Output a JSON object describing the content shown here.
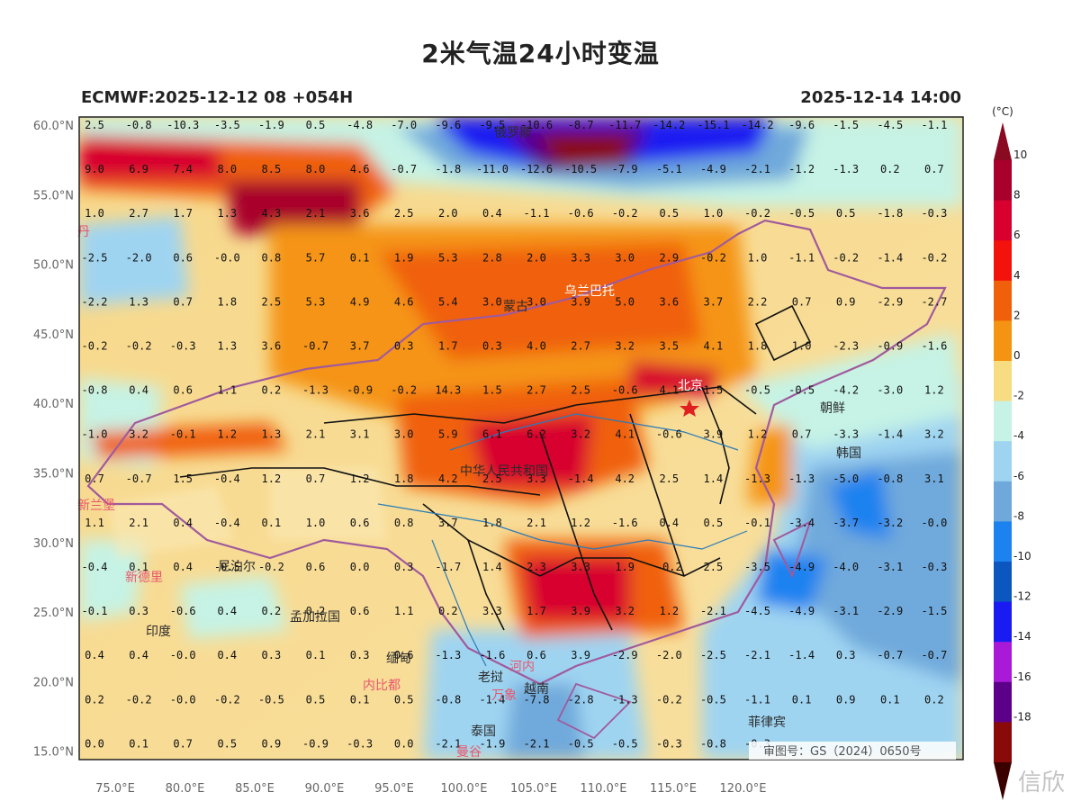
{
  "header": {
    "title": "2米气温24小时变温",
    "model_run": "ECMWF:2025-12-12 08 +054H",
    "valid_time": "2025-12-14 14:00"
  },
  "map": {
    "lat_labels": [
      "60.0°N",
      "55.0°N",
      "50.0°N",
      "45.0°N",
      "40.0°N",
      "35.0°N",
      "30.0°N",
      "25.0°N",
      "20.0°N",
      "15.0°N"
    ],
    "lon_labels": [
      "75.0°E",
      "80.0°E",
      "85.0°E",
      "90.0°E",
      "95.0°E",
      "100.0°E",
      "105.0°E",
      "110.0°E",
      "115.0°E",
      "120.0°E"
    ],
    "grid_values": [
      [
        "2.5",
        "-0.8",
        "-10.3",
        "-3.5",
        "-1.9",
        "0.5",
        "-4.8",
        "-7.0",
        "-9.6",
        "-9.5",
        "-10.6",
        "-8.7",
        "-11.7",
        "-14.2",
        "-15.1",
        "-14.2",
        "-9.6",
        "-1.5",
        "-4.5",
        "-1.1"
      ],
      [
        "9.0",
        "6.9",
        "7.4",
        "8.0",
        "8.5",
        "8.0",
        "4.6",
        "-0.7",
        "-1.8",
        "-11.0",
        "-12.6",
        "-10.5",
        "-7.9",
        "-5.1",
        "-4.9",
        "-2.1",
        "-1.2",
        "-1.3",
        "0.2",
        "0.7"
      ],
      [
        "1.0",
        "2.7",
        "1.7",
        "1.3",
        "4.3",
        "2.1",
        "3.6",
        "2.5",
        "2.0",
        "0.4",
        "-1.1",
        "-0.6",
        "-0.2",
        "0.5",
        "1.0",
        "-0.2",
        "-0.5",
        "0.5",
        "-1.8",
        "-0.3"
      ],
      [
        "-2.5",
        "-2.0",
        "0.6",
        "-0.0",
        "0.8",
        "5.7",
        "0.1",
        "1.9",
        "5.3",
        "2.8",
        "2.0",
        "3.3",
        "3.0",
        "2.9",
        "-0.2",
        "1.0",
        "-1.1",
        "-0.2",
        "-1.4",
        "-0.2"
      ],
      [
        "-2.2",
        "1.3",
        "0.7",
        "1.8",
        "2.5",
        "5.3",
        "4.9",
        "4.6",
        "5.4",
        "3.0",
        "3.0",
        "3.9",
        "5.0",
        "3.6",
        "3.7",
        "2.2",
        "0.7",
        "0.9",
        "-2.9",
        "-2.7"
      ],
      [
        "-0.2",
        "-0.2",
        "-0.3",
        "1.3",
        "3.6",
        "-0.7",
        "3.7",
        "0.3",
        "1.7",
        "0.3",
        "4.0",
        "2.7",
        "3.2",
        "3.5",
        "4.1",
        "1.8",
        "1.0",
        "-2.3",
        "-0.9",
        "-1.6"
      ],
      [
        "-0.8",
        "0.4",
        "0.6",
        "1.1",
        "0.2",
        "-1.3",
        "-0.9",
        "-0.2",
        "14.3",
        "1.5",
        "2.7",
        "2.5",
        "-0.6",
        "4.1",
        "1.5",
        "-0.5",
        "-0.5",
        "-4.2",
        "-3.0",
        "1.2"
      ],
      [
        "-1.0",
        "3.2",
        "-0.1",
        "1.2",
        "1.3",
        "2.1",
        "3.1",
        "3.0",
        "5.9",
        "6.1",
        "6.2",
        "3.2",
        "4.1",
        "-0.6",
        "3.9",
        "1.2",
        "0.7",
        "-3.3",
        "-1.4",
        "3.2"
      ],
      [
        "0.7",
        "-0.7",
        "1.5",
        "-0.4",
        "1.2",
        "0.7",
        "1.2",
        "1.8",
        "4.2",
        "2.5",
        "3.3",
        "-1.4",
        "4.2",
        "2.5",
        "1.4",
        "-1.3",
        "-1.3",
        "-5.0",
        "-0.8",
        "3.1"
      ],
      [
        "1.1",
        "2.1",
        "0.4",
        "-0.4",
        "0.1",
        "1.0",
        "0.6",
        "0.8",
        "3.7",
        "1.8",
        "2.1",
        "1.2",
        "-1.6",
        "0.4",
        "0.5",
        "-0.1",
        "-3.4",
        "-3.7",
        "-3.2",
        "-0.0"
      ],
      [
        "-0.4",
        "0.1",
        "0.4",
        "-0.5",
        "-0.2",
        "0.6",
        "0.0",
        "0.3",
        "-1.7",
        "1.4",
        "2.3",
        "3.3",
        "1.9",
        "-0.2",
        "2.5",
        "-3.5",
        "-4.9",
        "-4.0",
        "-3.1",
        "-0.3"
      ],
      [
        "-0.1",
        "0.3",
        "-0.6",
        "0.4",
        "0.2",
        "0.2",
        "0.6",
        "1.1",
        "0.2",
        "3.3",
        "1.7",
        "3.9",
        "3.2",
        "1.2",
        "-2.1",
        "-4.5",
        "-4.9",
        "-3.1",
        "-2.9",
        "-1.5"
      ],
      [
        "0.4",
        "0.4",
        "-0.0",
        "0.4",
        "0.3",
        "0.1",
        "0.3",
        "0.6",
        "-1.3",
        "-1.6",
        "0.6",
        "3.9",
        "-2.9",
        "-2.0",
        "-2.5",
        "-2.1",
        "-1.4",
        "0.3",
        "-0.7",
        "-0.7"
      ],
      [
        "0.2",
        "-0.2",
        "-0.0",
        "-0.2",
        "-0.5",
        "0.5",
        "0.1",
        "0.5",
        "-0.8",
        "-1.4",
        "-7.8",
        "-2.8",
        "-1.3",
        "-0.2",
        "-0.5",
        "-1.1",
        "0.1",
        "0.9",
        "0.1",
        "0.2"
      ],
      [
        "0.0",
        "0.1",
        "0.7",
        "0.5",
        "0.9",
        "-0.9",
        "-0.3",
        "0.0",
        "-2.1",
        "-1.9",
        "-2.1",
        "-0.5",
        "-0.5",
        "-0.3",
        "-0.8",
        "-0.3",
        "",
        "",
        "",
        ""
      ]
    ],
    "place_labels": [
      {
        "text": "俄罗斯",
        "color": "#2b2b2b"
      },
      {
        "text": "乌兰巴托",
        "color": "#ffffff"
      },
      {
        "text": "蒙古",
        "color": "#2b2b2b"
      },
      {
        "text": "北京",
        "color": "#ffffff"
      },
      {
        "text": "中华人民共和国",
        "color": "#2b2b2b"
      },
      {
        "text": "朝鲜",
        "color": "#2b2b2b"
      },
      {
        "text": "韩国",
        "color": "#2b2b2b"
      },
      {
        "text": "新德里",
        "color": "#e8566d"
      },
      {
        "text": "尼泊尔",
        "color": "#2b2b2b"
      },
      {
        "text": "印度",
        "color": "#2b2b2b"
      },
      {
        "text": "孟加拉国",
        "color": "#2b2b2b"
      },
      {
        "text": "缅甸",
        "color": "#2b2b2b"
      },
      {
        "text": "内比都",
        "color": "#e8566d"
      },
      {
        "text": "老挝",
        "color": "#2b2b2b"
      },
      {
        "text": "万象",
        "color": "#e8566d"
      },
      {
        "text": "河内",
        "color": "#e8566d"
      },
      {
        "text": "越南",
        "color": "#2b2b2b"
      },
      {
        "text": "泰国",
        "color": "#2b2b2b"
      },
      {
        "text": "曼谷",
        "color": "#e8566d"
      },
      {
        "text": "菲律宾",
        "color": "#2b2b2b"
      },
      {
        "text": "新兰堡",
        "color": "#e8566d"
      },
      {
        "text": "丹",
        "color": "#e8566d"
      }
    ],
    "review_number": "审图号：GS（2024）0650号"
  },
  "colorbar": {
    "unit": "(°C)",
    "tick_labels": [
      "10",
      "8",
      "6",
      "4",
      "2",
      "0",
      "-2",
      "-4",
      "-6",
      "-8",
      "-10",
      "-12",
      "-14",
      "-16",
      "-18"
    ],
    "colors": [
      "#a8002a",
      "#d8002f",
      "#f4120c",
      "#f0600a",
      "#f59412",
      "#f8dc82",
      "#c6f3e5",
      "#9fd4f1",
      "#6fa9db",
      "#1c82f0",
      "#0c56bf",
      "#1a1af2",
      "#a81ad8",
      "#5c008a",
      "#8a0a0a"
    ]
  },
  "watermark": "信欣"
}
